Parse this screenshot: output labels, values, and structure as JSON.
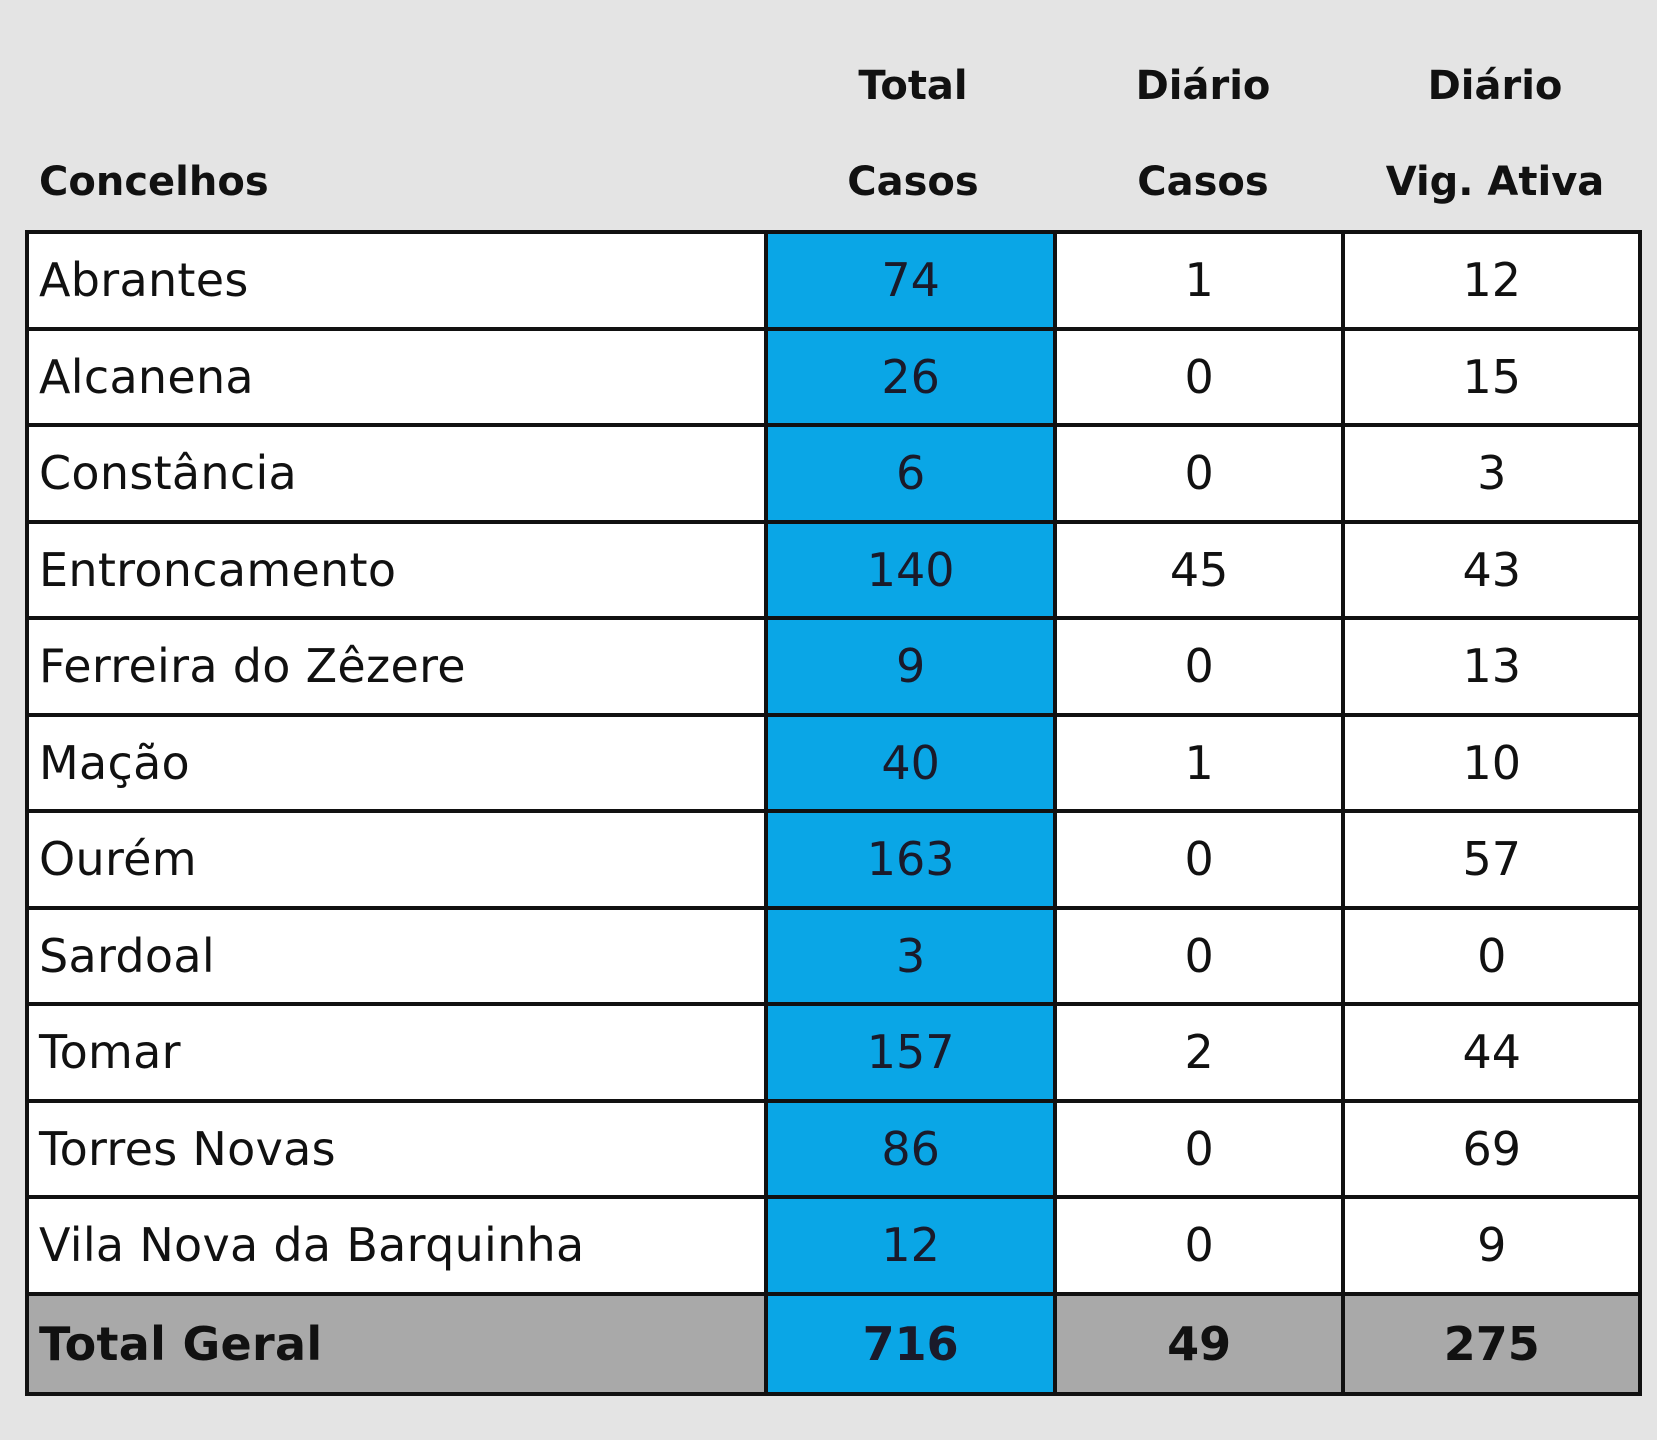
{
  "headers": {
    "name": "Concelhos",
    "total_casos": [
      "Total",
      "Casos"
    ],
    "diario_casos": [
      "Diário",
      "Casos"
    ],
    "diario_vig": [
      "Diário",
      "Vig. Ativa"
    ]
  },
  "rows": [
    {
      "name": "Abrantes",
      "total": "74",
      "diario": "1",
      "vig": "12"
    },
    {
      "name": "Alcanena",
      "total": "26",
      "diario": "0",
      "vig": "15"
    },
    {
      "name": "Constância",
      "total": "6",
      "diario": "0",
      "vig": "3"
    },
    {
      "name": "Entroncamento",
      "total": "140",
      "diario": "45",
      "vig": "43"
    },
    {
      "name": "Ferreira do Zêzere",
      "total": "9",
      "diario": "0",
      "vig": "13"
    },
    {
      "name": "Mação",
      "total": "40",
      "diario": "1",
      "vig": "10"
    },
    {
      "name": "Ourém",
      "total": "163",
      "diario": "0",
      "vig": "57"
    },
    {
      "name": "Sardoal",
      "total": "3",
      "diario": "0",
      "vig": "0"
    },
    {
      "name": "Tomar",
      "total": "157",
      "diario": "2",
      "vig": "44"
    },
    {
      "name": "Torres Novas",
      "total": "86",
      "diario": "0",
      "vig": "69"
    },
    {
      "name": "Vila Nova da Barquinha",
      "total": "12",
      "diario": "0",
      "vig": "9"
    }
  ],
  "total": {
    "name": "Total Geral",
    "total": "716",
    "diario": "49",
    "vig": "275"
  },
  "colors": {
    "highlight_column": "#0aa6e6",
    "total_row": "#a9a9a9",
    "background": "#e4e4e4"
  }
}
